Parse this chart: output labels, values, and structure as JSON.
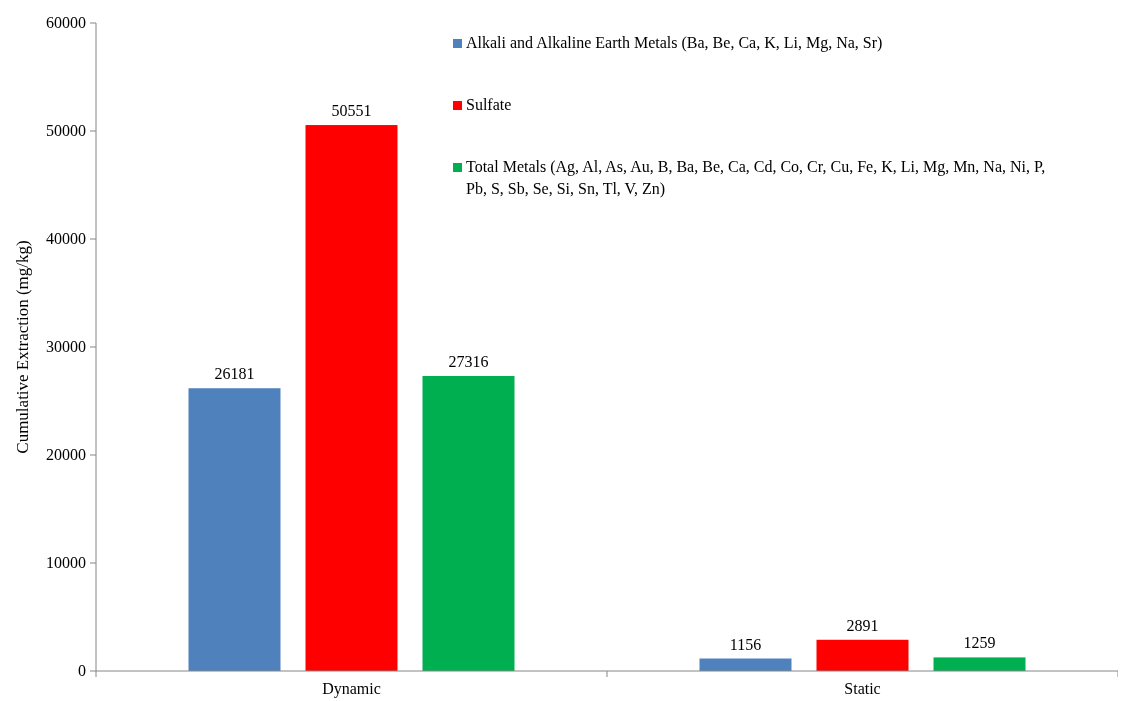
{
  "chart_data": {
    "type": "bar",
    "categories": [
      "Dynamic",
      "Static"
    ],
    "ylabel": "Cumulative Extraction (mg/kg)",
    "ylim": [
      0,
      60000
    ],
    "yticks": [
      0,
      10000,
      20000,
      30000,
      40000,
      50000,
      60000
    ],
    "series": [
      {
        "name": "Alkali and Alkaline Earth Metals (Ba, Be, Ca, K, Li, Mg, Na, Sr)",
        "color": "#4f81bd",
        "values": [
          26181,
          1156
        ]
      },
      {
        "name": "Sulfate",
        "color": "#ff0000",
        "values": [
          50551,
          2891
        ]
      },
      {
        "name": "Total Metals (Ag, Al, As, Au, B, Ba, Be, Ca, Cd, Co, Cr, Cu, Fe, K, Li, Mg, Mn, Na, Ni, P, Pb, S, Sb, Se, Si, Sn, Tl, V, Zn)",
        "color": "#00b050",
        "values": [
          27316,
          1259
        ]
      }
    ],
    "data_labels": true,
    "legend": "top right",
    "grid": false
  }
}
